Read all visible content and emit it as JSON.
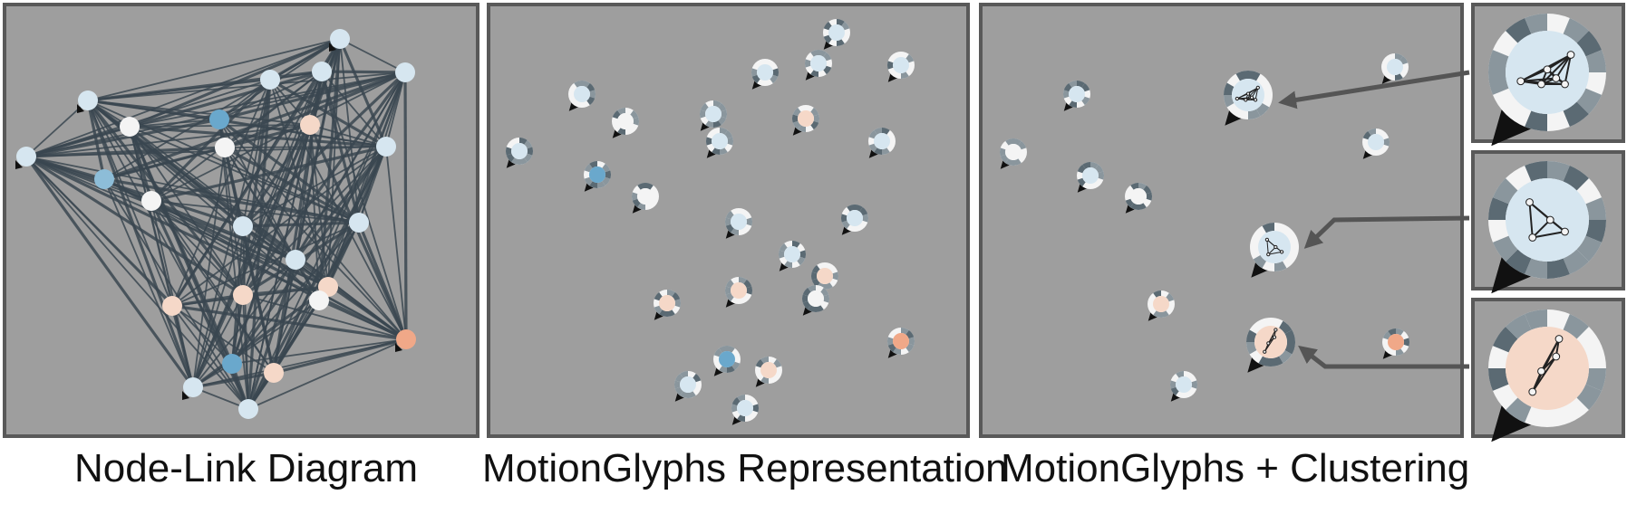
{
  "captions": {
    "node_link": "Node-Link Diagram",
    "motion_glyphs": "MotionGlyphs Representation",
    "clustering": "MotionGlyphs + Clustering"
  },
  "colors": {
    "panel_bg": "#9e9e9e",
    "panel_border": "#595959",
    "edge": "#3a4650",
    "node_light_blue": "#d6e6f0",
    "node_mid_blue": "#8dbdd8",
    "node_blue": "#6aa8cc",
    "node_white": "#f4f4f4",
    "node_peach": "#f5d8c8",
    "node_salmon": "#f0a888",
    "glyph_ring_dark": "#5b6a73",
    "glyph_ring_light": "#f4f4f4",
    "arrow": "#555555"
  },
  "node_link": {
    "node_count": 24
  },
  "motion_glyphs": {
    "glyph_count": 26
  },
  "clustering": {
    "cluster_glyph_count": 3,
    "single_glyph_count": 10
  }
}
